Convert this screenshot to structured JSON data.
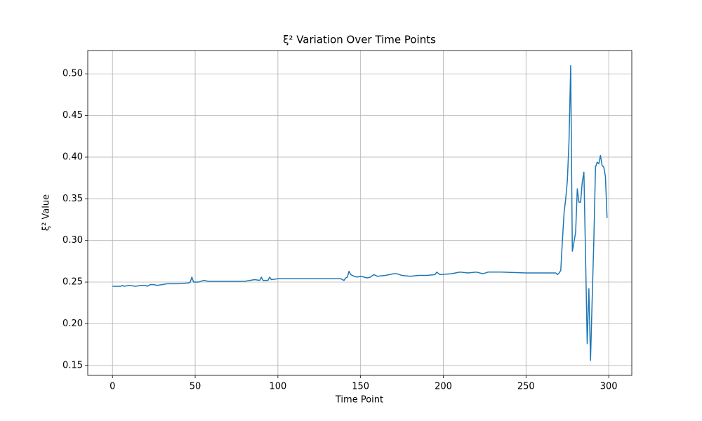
{
  "chart_data": {
    "type": "line",
    "title": "ξ² Variation Over Time Points",
    "xlabel": "Time Point",
    "ylabel": "ξ² Value",
    "color": "#1f77b4",
    "grid": true,
    "xlim": [
      -14.95,
      313.95
    ],
    "ylim": [
      0.138,
      0.528
    ],
    "xticks": [
      0,
      50,
      100,
      150,
      200,
      250,
      300
    ],
    "yticks": [
      0.15,
      {
        "value": 0.2,
        "label": "0.20"
      },
      0.25,
      {
        "value": 0.3,
        "label": "0.30"
      },
      0.35,
      {
        "value": 0.4,
        "label": "0.40"
      },
      0.45,
      {
        "value": 0.5,
        "label": "0.50"
      }
    ],
    "x": [
      0,
      5,
      6,
      7,
      10,
      14,
      17,
      20,
      21,
      23,
      25,
      27,
      30,
      33,
      40,
      46,
      47,
      48,
      49,
      52,
      55,
      58,
      65,
      80,
      86,
      89,
      90,
      91,
      94,
      95,
      96,
      100,
      120,
      138,
      140,
      141,
      142,
      143,
      144,
      146,
      148,
      150,
      152,
      154,
      156,
      158,
      160,
      165,
      170,
      172,
      175,
      180,
      185,
      190,
      195,
      196,
      198,
      205,
      210,
      215,
      220,
      224,
      227,
      235,
      250,
      268,
      269,
      270,
      271,
      272,
      273,
      274,
      275,
      276,
      277,
      278,
      279,
      280,
      281,
      282,
      283,
      284,
      285,
      286,
      287,
      288,
      289,
      290,
      291,
      292,
      293,
      294,
      295,
      296,
      297,
      298,
      299
    ],
    "values": [
      0.245,
      0.245,
      0.246,
      0.245,
      0.246,
      0.245,
      0.246,
      0.246,
      0.245,
      0.247,
      0.247,
      0.246,
      0.247,
      0.248,
      0.248,
      0.249,
      0.25,
      0.256,
      0.25,
      0.25,
      0.252,
      0.251,
      0.251,
      0.251,
      0.253,
      0.252,
      0.256,
      0.252,
      0.252,
      0.256,
      0.253,
      0.254,
      0.254,
      0.254,
      0.252,
      0.255,
      0.256,
      0.263,
      0.259,
      0.257,
      0.256,
      0.257,
      0.256,
      0.255,
      0.256,
      0.259,
      0.257,
      0.258,
      0.26,
      0.26,
      0.258,
      0.257,
      0.258,
      0.258,
      0.259,
      0.262,
      0.259,
      0.26,
      0.262,
      0.261,
      0.262,
      0.26,
      0.262,
      0.262,
      0.261,
      0.261,
      0.259,
      0.261,
      0.264,
      0.3,
      0.333,
      0.35,
      0.372,
      0.42,
      0.51,
      0.287,
      0.298,
      0.31,
      0.362,
      0.346,
      0.346,
      0.37,
      0.382,
      0.28,
      0.176,
      0.242,
      0.156,
      0.23,
      0.3,
      0.388,
      0.394,
      0.392,
      0.402,
      0.39,
      0.388,
      0.377,
      0.327
    ]
  }
}
